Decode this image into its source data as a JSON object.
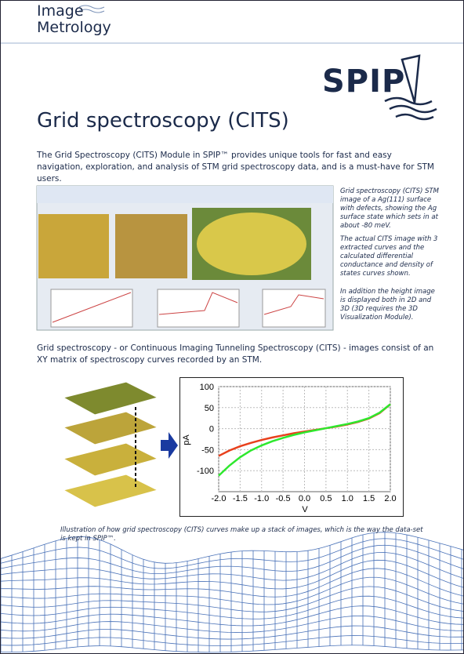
{
  "header": {
    "logo": [
      "Image",
      "Metrology"
    ],
    "brand": "SPIP"
  },
  "title": "Grid spectroscopy (CITS)",
  "intro": "The Grid Spectroscopy (CITS) Module in SPIP™ provides unique tools for fast and easy navigation, exploration, and analysis of STM grid spectroscopy data, and is a must-have for STM users.",
  "side_caption": [
    "Grid spectroscopy (CITS) STM image of a Ag(111) surface with defects, showing the Ag surface state which sets in at about -80 meV.",
    "The actual CITS image with 3 extracted curves and the calculated differential conductance and density of states curves shown.",
    "In addition the height image is displayed both in 2D and 3D (3D requires the 3D Visualization Module)."
  ],
  "body": "Grid spectroscopy - or Continuous Imaging Tunneling Spectroscopy (CITS) - images consist of an XY matrix of spectroscopy curves recorded by an STM.",
  "chart_data": {
    "type": "line",
    "xlabel": "V",
    "ylabel": "pA",
    "x": [
      -2,
      -1.75,
      -1.5,
      -1.25,
      -1,
      -0.75,
      -0.5,
      -0.25,
      0,
      0.25,
      0.5,
      0.75,
      1,
      1.25,
      1.5,
      1.75,
      2
    ],
    "series": [
      {
        "color": "#e8401c",
        "values": [
          -65,
          -52,
          -42,
          -34,
          -27,
          -21,
          -16,
          -11,
          -7,
          -3,
          1,
          5,
          10,
          16,
          24,
          37,
          58
        ]
      },
      {
        "color": "#2ee82e",
        "values": [
          -112,
          -88,
          -68,
          -52,
          -40,
          -30,
          -22,
          -15,
          -9,
          -4,
          1,
          6,
          11,
          17,
          25,
          38,
          58
        ]
      }
    ],
    "xlim": [
      -2,
      2
    ],
    "xticks": [
      {
        "value": -2,
        "label": "-2.0"
      },
      {
        "value": -1.5,
        "label": "-1.5"
      },
      {
        "value": -1,
        "label": "-1.0"
      },
      {
        "value": -0.5,
        "label": "-0.5"
      },
      {
        "value": 0,
        "label": "0.0"
      },
      {
        "value": 0.5,
        "label": "0.5"
      },
      {
        "value": 1,
        "label": "1.0"
      },
      {
        "value": 1.5,
        "label": "1.5"
      },
      {
        "value": 2,
        "label": "2.0"
      }
    ],
    "ylim": [
      -150,
      100
    ],
    "yticks": [
      100,
      50,
      0,
      -50,
      -100
    ],
    "grid": true
  },
  "figure_caption": "Illustration of how grid spectroscopy (CITS) curves make up a stack of images, which is the way the data-set is kept in SPIP™."
}
